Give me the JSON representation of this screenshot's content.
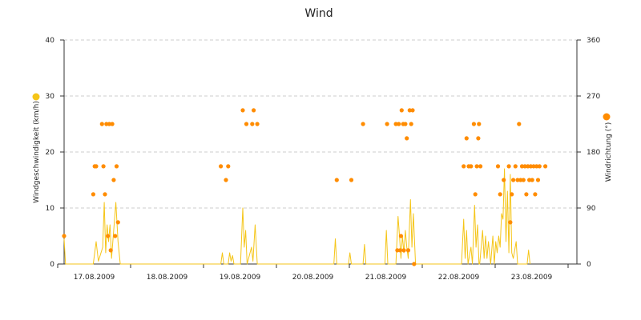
{
  "chart_data": {
    "type": "line",
    "title": "Wind",
    "ylabel": "Windgeschwindigkeit (km/h)",
    "y2label": "Windrichtung (°)",
    "ylim": [
      0,
      40
    ],
    "y2lim": [
      0,
      360
    ],
    "yticks": [
      "0",
      "10",
      "20",
      "30",
      "40"
    ],
    "y2ticks": [
      "0",
      "90",
      "180",
      "270",
      "360"
    ],
    "xlabels": [
      "17.08.2009",
      "18.08.2009",
      "19.08.2009",
      "20.08.2009",
      "21.08.2009",
      "22.08.2009",
      "23.08.2009"
    ],
    "grid": true,
    "colors": {
      "speed": "#f5c518",
      "direction": "#ff8c00",
      "grid": "#cccccc",
      "axis": "#333333"
    },
    "speed_series": {
      "points": [
        [
          0.0,
          4.5
        ],
        [
          0.02,
          0
        ],
        [
          0.4,
          0
        ],
        [
          0.44,
          4
        ],
        [
          0.47,
          0.5
        ],
        [
          0.53,
          3
        ],
        [
          0.55,
          11
        ],
        [
          0.57,
          2
        ],
        [
          0.59,
          7
        ],
        [
          0.61,
          4
        ],
        [
          0.63,
          7
        ],
        [
          0.65,
          1
        ],
        [
          0.68,
          6
        ],
        [
          0.71,
          11
        ],
        [
          0.74,
          4
        ],
        [
          0.77,
          0
        ],
        [
          2.15,
          0
        ],
        [
          2.17,
          2
        ],
        [
          2.19,
          0
        ],
        [
          2.25,
          0
        ],
        [
          2.27,
          2
        ],
        [
          2.29,
          0.5
        ],
        [
          2.31,
          1.5
        ],
        [
          2.33,
          0
        ],
        [
          2.42,
          0
        ],
        [
          2.45,
          10
        ],
        [
          2.47,
          3
        ],
        [
          2.49,
          6
        ],
        [
          2.51,
          0
        ],
        [
          2.57,
          3
        ],
        [
          2.59,
          0.5
        ],
        [
          2.62,
          7
        ],
        [
          2.65,
          0
        ],
        [
          3.7,
          0
        ],
        [
          3.72,
          4.5
        ],
        [
          3.74,
          0
        ],
        [
          3.9,
          0
        ],
        [
          3.92,
          2
        ],
        [
          3.94,
          0
        ],
        [
          4.1,
          0
        ],
        [
          4.12,
          3.5
        ],
        [
          4.14,
          0
        ],
        [
          4.4,
          0
        ],
        [
          4.42,
          6
        ],
        [
          4.44,
          0
        ],
        [
          4.55,
          0
        ],
        [
          4.58,
          8.5
        ],
        [
          4.6,
          5
        ],
        [
          4.62,
          1
        ],
        [
          4.64,
          5
        ],
        [
          4.66,
          2
        ],
        [
          4.68,
          6
        ],
        [
          4.7,
          3
        ],
        [
          4.72,
          1
        ],
        [
          4.75,
          11.5
        ],
        [
          4.77,
          3
        ],
        [
          4.79,
          9
        ],
        [
          4.82,
          0
        ],
        [
          5.45,
          0
        ],
        [
          5.48,
          8
        ],
        [
          5.5,
          1
        ],
        [
          5.52,
          6
        ],
        [
          5.54,
          0
        ],
        [
          5.58,
          3
        ],
        [
          5.6,
          0
        ],
        [
          5.63,
          10.5
        ],
        [
          5.65,
          3
        ],
        [
          5.67,
          7
        ],
        [
          5.69,
          0
        ],
        [
          5.7,
          0
        ],
        [
          5.74,
          6
        ],
        [
          5.76,
          1
        ],
        [
          5.78,
          5
        ],
        [
          5.8,
          1
        ],
        [
          5.82,
          4
        ],
        [
          5.85,
          0
        ],
        [
          5.88,
          5
        ],
        [
          5.9,
          0
        ],
        [
          5.92,
          4
        ],
        [
          5.94,
          2
        ],
        [
          5.96,
          5
        ],
        [
          5.98,
          3
        ],
        [
          6.0,
          9
        ],
        [
          6.02,
          8
        ],
        [
          6.04,
          17
        ],
        [
          6.06,
          4
        ],
        [
          6.08,
          13
        ],
        [
          6.1,
          2
        ],
        [
          6.12,
          16
        ],
        [
          6.14,
          2
        ],
        [
          6.16,
          1
        ],
        [
          6.2,
          4
        ],
        [
          6.22,
          0
        ],
        [
          6.35,
          0
        ],
        [
          6.37,
          2.5
        ],
        [
          6.39,
          0
        ]
      ]
    },
    "direction_series": {
      "points": [
        [
          0.0,
          45
        ],
        [
          0.4,
          112
        ],
        [
          0.42,
          157
        ],
        [
          0.44,
          157
        ],
        [
          0.52,
          225
        ],
        [
          0.54,
          157
        ],
        [
          0.56,
          112
        ],
        [
          0.58,
          225
        ],
        [
          0.6,
          45
        ],
        [
          0.62,
          225
        ],
        [
          0.64,
          22
        ],
        [
          0.66,
          225
        ],
        [
          0.68,
          135
        ],
        [
          0.7,
          45
        ],
        [
          0.72,
          157
        ],
        [
          0.74,
          67
        ],
        [
          2.15,
          157
        ],
        [
          2.22,
          135
        ],
        [
          2.25,
          157
        ],
        [
          2.45,
          247
        ],
        [
          2.5,
          225
        ],
        [
          2.58,
          225
        ],
        [
          2.6,
          247
        ],
        [
          2.65,
          225
        ],
        [
          3.74,
          135
        ],
        [
          3.94,
          135
        ],
        [
          4.1,
          225
        ],
        [
          4.43,
          225
        ],
        [
          4.55,
          225
        ],
        [
          4.57,
          22
        ],
        [
          4.59,
          225
        ],
        [
          4.61,
          22
        ],
        [
          4.62,
          45
        ],
        [
          4.63,
          247
        ],
        [
          4.65,
          225
        ],
        [
          4.66,
          22
        ],
        [
          4.68,
          225
        ],
        [
          4.7,
          202
        ],
        [
          4.72,
          22
        ],
        [
          4.74,
          247
        ],
        [
          4.76,
          225
        ],
        [
          4.78,
          247
        ],
        [
          4.8,
          0
        ],
        [
          5.48,
          157
        ],
        [
          5.52,
          202
        ],
        [
          5.55,
          157
        ],
        [
          5.58,
          157
        ],
        [
          5.62,
          225
        ],
        [
          5.64,
          112
        ],
        [
          5.66,
          157
        ],
        [
          5.68,
          202
        ],
        [
          5.69,
          225
        ],
        [
          5.71,
          157
        ],
        [
          5.95,
          157
        ],
        [
          5.98,
          112
        ],
        [
          6.03,
          135
        ],
        [
          6.1,
          157
        ],
        [
          6.12,
          67
        ],
        [
          6.14,
          112
        ],
        [
          6.16,
          135
        ],
        [
          6.19,
          157
        ],
        [
          6.22,
          135
        ],
        [
          6.24,
          225
        ],
        [
          6.26,
          135
        ],
        [
          6.28,
          157
        ],
        [
          6.3,
          135
        ],
        [
          6.32,
          157
        ],
        [
          6.34,
          112
        ],
        [
          6.36,
          157
        ],
        [
          6.38,
          135
        ],
        [
          6.4,
          157
        ],
        [
          6.42,
          135
        ],
        [
          6.44,
          157
        ],
        [
          6.46,
          112
        ],
        [
          6.48,
          157
        ],
        [
          6.5,
          135
        ],
        [
          6.52,
          157
        ],
        [
          6.6,
          157
        ]
      ]
    }
  }
}
